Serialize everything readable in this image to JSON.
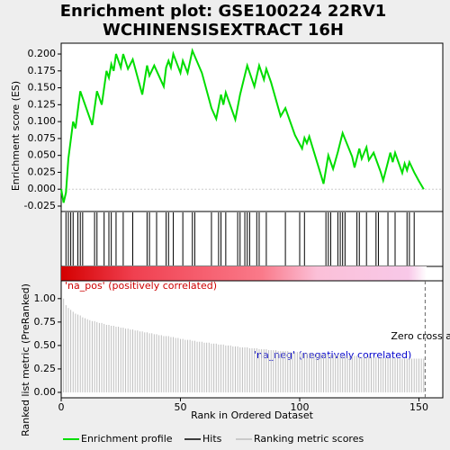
{
  "chart_data": [
    {
      "type": "line",
      "title": [
        "Enrichment plot: GSE100224 22RV1",
        "WCHINENSISEXTRACT 16H"
      ],
      "y_label": "Enrichment score (ES)",
      "xlim": [
        0,
        160
      ],
      "ylim": [
        -0.033,
        0.216
      ],
      "yticks": [
        {
          "value": 0.2,
          "label": "0.200"
        },
        {
          "value": 0.175,
          "label": "0.175"
        },
        {
          "value": 0.15,
          "label": "0.150"
        },
        {
          "value": 0.125,
          "label": "0.125"
        },
        {
          "value": 0.1,
          "label": "0.100"
        },
        {
          "value": 0.075,
          "label": "0.075"
        },
        {
          "value": 0.05,
          "label": "0.050"
        },
        {
          "value": 0.025,
          "label": "0.025"
        },
        {
          "value": 0,
          "label": "0.000"
        },
        {
          "value": -0.025,
          "label": "-0.025"
        }
      ],
      "series": [
        {
          "name": "Enrichment profile",
          "color": "#00dd00",
          "x": [
            0,
            1,
            2,
            3,
            5,
            6,
            8,
            13,
            15,
            17,
            19,
            20,
            21,
            22,
            23,
            25,
            26,
            28,
            30,
            34,
            36,
            37,
            39,
            43,
            44,
            45,
            46,
            47,
            50,
            51,
            53,
            55,
            59,
            63,
            65,
            67,
            68,
            69,
            73,
            75,
            78,
            81,
            83,
            85,
            86,
            88,
            92,
            94,
            98,
            101,
            102,
            103,
            104,
            109,
            110,
            112,
            114,
            116,
            118,
            122,
            123,
            125,
            126,
            128,
            129,
            131,
            134,
            135,
            137,
            138,
            139,
            140,
            143,
            144,
            145,
            146,
            148,
            150,
            152
          ],
          "values": [
            0,
            -0.02,
            -0.005,
            0.045,
            0.1,
            0.09,
            0.145,
            0.095,
            0.145,
            0.125,
            0.175,
            0.165,
            0.185,
            0.175,
            0.2,
            0.18,
            0.2,
            0.178,
            0.192,
            0.14,
            0.183,
            0.168,
            0.183,
            0.152,
            0.18,
            0.19,
            0.18,
            0.2,
            0.172,
            0.19,
            0.172,
            0.205,
            0.172,
            0.12,
            0.104,
            0.14,
            0.125,
            0.143,
            0.103,
            0.14,
            0.183,
            0.152,
            0.183,
            0.162,
            0.178,
            0.158,
            0.108,
            0.12,
            0.08,
            0.06,
            0.076,
            0.068,
            0.078,
            0.02,
            0.008,
            0.05,
            0.03,
            0.055,
            0.083,
            0.048,
            0.032,
            0.06,
            0.045,
            0.062,
            0.043,
            0.054,
            0.025,
            0.013,
            0.04,
            0.054,
            0.04,
            0.054,
            0.024,
            0.038,
            0.028,
            0.04,
            0.025,
            0.012,
            0
          ]
        }
      ]
    },
    {
      "type": "rug",
      "xlim": [
        0,
        160
      ],
      "series": [
        {
          "name": "Hits",
          "color": "#000000",
          "x": [
            2,
            3,
            4,
            5,
            7,
            8,
            9,
            14,
            15,
            18,
            20,
            21,
            23,
            26,
            30,
            36,
            37,
            40,
            44,
            45,
            47,
            51,
            55,
            56,
            63,
            66,
            67,
            69,
            74,
            75,
            77,
            78,
            79,
            82,
            83,
            86,
            94,
            100,
            102,
            111,
            112,
            113,
            116,
            117,
            118,
            119,
            124,
            125,
            128,
            132,
            133,
            137,
            140,
            145,
            146,
            148
          ]
        }
      ]
    },
    {
      "type": "bar",
      "x_label": "Rank in Ordered Dataset",
      "y_label": "Ranked list metric (PreRanked)",
      "xlim": [
        0,
        160
      ],
      "xticks": [
        0,
        50,
        100,
        150
      ],
      "ylim": [
        -0.058,
        1.19
      ],
      "yticks": [
        {
          "value": 0,
          "label": "0.00"
        },
        {
          "value": 0.25,
          "label": "0.25"
        },
        {
          "value": 0.5,
          "label": "0.50"
        },
        {
          "value": 0.75,
          "label": "0.75"
        },
        {
          "value": 1,
          "label": "1.00"
        }
      ],
      "pos_label": "'na_pos' (positively correlated)",
      "neg_label": "'na_neg' (negatively correlated)",
      "zero_cross": 152.6,
      "zero_cross_label": "Zero cross at",
      "series": [
        {
          "name": "Ranking metric scores",
          "color": "#bebebe",
          "x": [
            1,
            2,
            3,
            4,
            5,
            6,
            7,
            8,
            9,
            10,
            11,
            12,
            13,
            14,
            15,
            16,
            17,
            18,
            19,
            20,
            21,
            22,
            23,
            24,
            25,
            26,
            27,
            28,
            29,
            30,
            31,
            32,
            33,
            34,
            35,
            36,
            37,
            38,
            39,
            40,
            41,
            42,
            43,
            44,
            45,
            46,
            47,
            48,
            49,
            50,
            51,
            52,
            53,
            54,
            55,
            56,
            57,
            58,
            59,
            60,
            61,
            62,
            63,
            64,
            65,
            66,
            67,
            68,
            69,
            70,
            71,
            72,
            73,
            74,
            75,
            76,
            77,
            78,
            79,
            80,
            81,
            82,
            83,
            84,
            85,
            86,
            87,
            88,
            89,
            90,
            91,
            92,
            93,
            94,
            95,
            96,
            97,
            98,
            99,
            100,
            101,
            102,
            103,
            104,
            105,
            106,
            107,
            108,
            109,
            110,
            111,
            112,
            113,
            114,
            115,
            116,
            117,
            118,
            119,
            120,
            121,
            122,
            123,
            124,
            125,
            126,
            127,
            128,
            129,
            130,
            131,
            132,
            133,
            134,
            135,
            136,
            137,
            138,
            139,
            140,
            141,
            142,
            143,
            144,
            145,
            146,
            147,
            148,
            149,
            150,
            151,
            152
          ],
          "values": [
            1.0,
            0.93,
            0.9,
            0.88,
            0.86,
            0.84,
            0.83,
            0.82,
            0.8,
            0.79,
            0.78,
            0.77,
            0.76,
            0.76,
            0.75,
            0.74,
            0.74,
            0.73,
            0.72,
            0.72,
            0.71,
            0.71,
            0.7,
            0.7,
            0.69,
            0.69,
            0.68,
            0.68,
            0.67,
            0.67,
            0.66,
            0.66,
            0.65,
            0.65,
            0.64,
            0.64,
            0.63,
            0.63,
            0.62,
            0.62,
            0.61,
            0.61,
            0.6,
            0.6,
            0.6,
            0.59,
            0.59,
            0.58,
            0.58,
            0.57,
            0.57,
            0.56,
            0.56,
            0.56,
            0.55,
            0.55,
            0.54,
            0.54,
            0.54,
            0.53,
            0.53,
            0.53,
            0.52,
            0.52,
            0.52,
            0.51,
            0.51,
            0.51,
            0.5,
            0.5,
            0.5,
            0.49,
            0.49,
            0.49,
            0.48,
            0.48,
            0.48,
            0.48,
            0.47,
            0.47,
            0.47,
            0.47,
            0.46,
            0.46,
            0.46,
            0.46,
            0.45,
            0.45,
            0.45,
            0.45,
            0.44,
            0.44,
            0.44,
            0.44,
            0.44,
            0.43,
            0.43,
            0.43,
            0.43,
            0.43,
            0.42,
            0.42,
            0.42,
            0.42,
            0.42,
            0.41,
            0.41,
            0.41,
            0.41,
            0.41,
            0.41,
            0.4,
            0.4,
            0.4,
            0.4,
            0.4,
            0.4,
            0.39,
            0.39,
            0.39,
            0.39,
            0.39,
            0.39,
            0.39,
            0.38,
            0.38,
            0.38,
            0.38,
            0.38,
            0.38,
            0.38,
            0.38,
            0.37,
            0.37,
            0.37,
            0.37,
            0.37,
            0.37,
            0.37,
            0.37,
            0.37,
            0.36,
            0.36,
            0.36,
            0.36,
            0.36,
            0.36,
            0.36,
            0.36,
            0.36,
            0.36,
            0.36
          ]
        }
      ]
    }
  ]
}
